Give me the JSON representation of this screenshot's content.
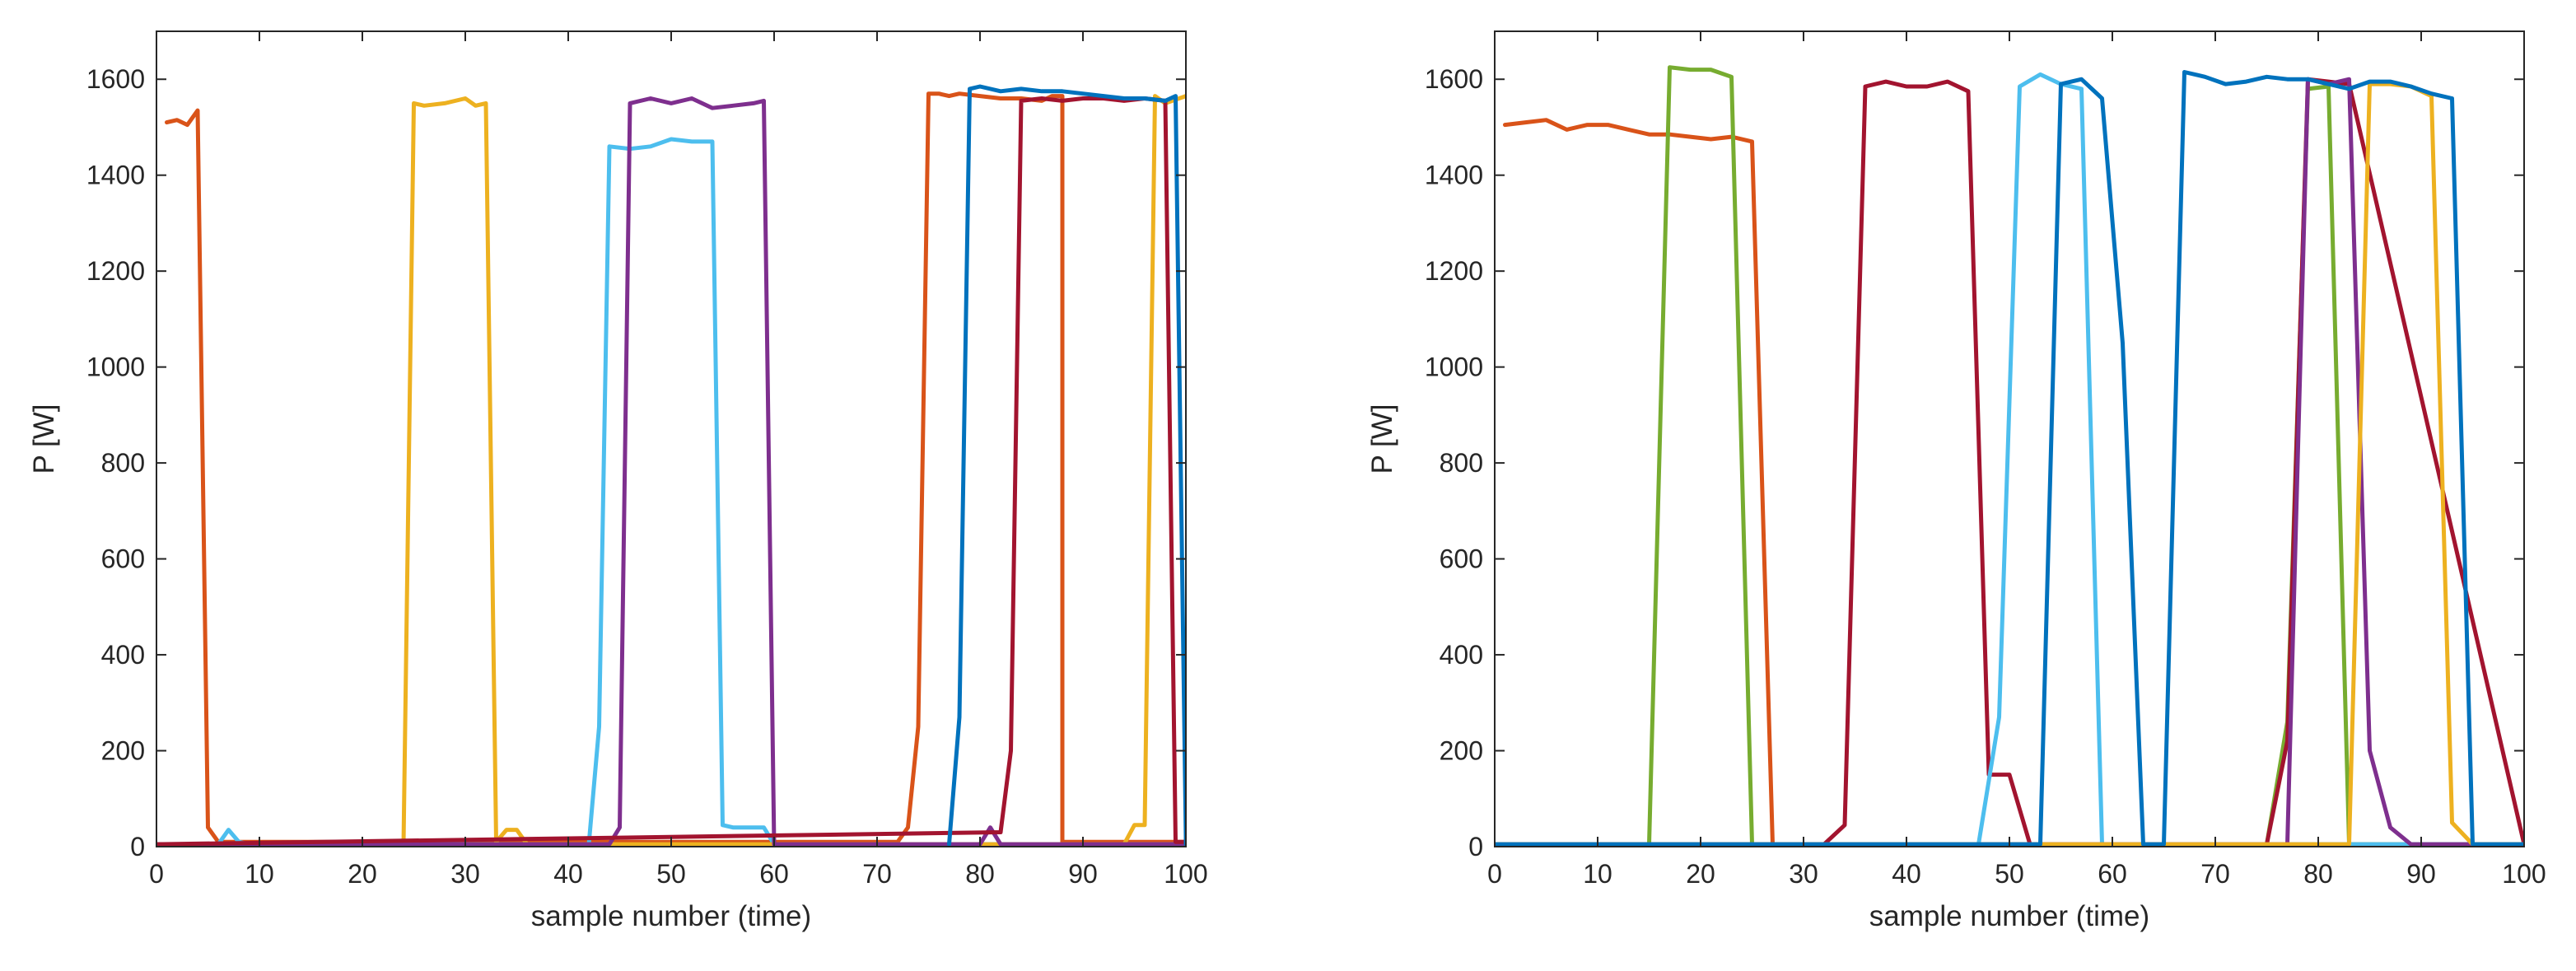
{
  "chart_data": [
    {
      "type": "line",
      "title": "",
      "xlabel": "sample number (time)",
      "ylabel": "P [W]",
      "xlim": [
        0,
        100
      ],
      "ylim": [
        0,
        1700
      ],
      "xticks": [
        0,
        10,
        20,
        30,
        40,
        50,
        60,
        70,
        80,
        90,
        100
      ],
      "yticks": [
        0,
        200,
        400,
        600,
        800,
        1000,
        1200,
        1400,
        1600
      ],
      "grid": false,
      "series": [
        {
          "name": "baseline-blue",
          "color": "#0072BD",
          "x": [
            0,
            100
          ],
          "y": [
            5,
            5
          ]
        },
        {
          "name": "baseline-maroon",
          "color": "#A2142F",
          "x": [
            0,
            100
          ],
          "y": [
            5,
            5
          ]
        },
        {
          "name": "orange",
          "color": "#D95319",
          "x": [
            1,
            2,
            3,
            4,
            5,
            6,
            6,
            72,
            73,
            74,
            75,
            76,
            77,
            78,
            80,
            82,
            84,
            86,
            87,
            88,
            88,
            100
          ],
          "y": [
            1510,
            1515,
            1505,
            1535,
            40,
            10,
            10,
            10,
            40,
            250,
            1570,
            1570,
            1565,
            1570,
            1565,
            1560,
            1560,
            1555,
            1565,
            1565,
            10,
            10
          ]
        },
        {
          "name": "light-blue",
          "color": "#4DBEEE",
          "x": [
            0,
            6,
            7,
            8,
            9,
            42,
            43,
            44,
            46,
            48,
            50,
            52,
            54,
            55,
            56,
            58,
            59,
            60,
            100
          ],
          "y": [
            5,
            5,
            35,
            10,
            5,
            5,
            250,
            1460,
            1455,
            1460,
            1475,
            1470,
            1470,
            45,
            40,
            40,
            40,
            5,
            5
          ]
        },
        {
          "name": "yellow",
          "color": "#EDB120",
          "x": [
            0,
            24,
            25,
            26,
            28,
            30,
            31,
            32,
            33,
            34,
            35,
            36,
            94,
            95,
            96,
            97,
            98,
            100
          ],
          "y": [
            5,
            5,
            1550,
            1545,
            1550,
            1560,
            1545,
            1550,
            10,
            35,
            35,
            5,
            5,
            45,
            45,
            1565,
            1550,
            1565
          ]
        },
        {
          "name": "purple",
          "color": "#7E2F8E",
          "x": [
            0,
            44,
            45,
            46,
            48,
            50,
            52,
            54,
            56,
            58,
            59,
            60,
            80,
            81,
            82,
            100
          ],
          "y": [
            5,
            5,
            40,
            1550,
            1560,
            1550,
            1560,
            1540,
            1545,
            1550,
            1555,
            5,
            5,
            40,
            5,
            5
          ]
        },
        {
          "name": "maroon",
          "color": "#A2142F",
          "x": [
            0,
            82,
            83,
            84,
            86,
            88,
            90,
            92,
            94,
            96,
            98,
            99,
            100
          ],
          "y": [
            5,
            30,
            200,
            1555,
            1560,
            1555,
            1560,
            1560,
            1555,
            1560,
            1555,
            10,
            10
          ]
        },
        {
          "name": "blue",
          "color": "#0072BD",
          "x": [
            77,
            78,
            79,
            80,
            82,
            84,
            86,
            88,
            90,
            92,
            94,
            96,
            98,
            99,
            100,
            100
          ],
          "y": [
            5,
            270,
            1580,
            1585,
            1575,
            1580,
            1575,
            1575,
            1570,
            1565,
            1560,
            1560,
            1555,
            1565,
            20,
            5
          ]
        }
      ]
    },
    {
      "type": "line",
      "title": "",
      "xlabel": "sample number (time)",
      "ylabel": "P [W]",
      "xlim": [
        0,
        100
      ],
      "ylim": [
        0,
        1700
      ],
      "xticks": [
        0,
        10,
        20,
        30,
        40,
        50,
        60,
        70,
        80,
        90,
        100
      ],
      "yticks": [
        0,
        200,
        400,
        600,
        800,
        1000,
        1200,
        1400,
        1600
      ],
      "grid": false,
      "series": [
        {
          "name": "orange",
          "color": "#D95319",
          "x": [
            1,
            3,
            5,
            7,
            9,
            11,
            13,
            15,
            17,
            19,
            21,
            23,
            25,
            27,
            28,
            100
          ],
          "y": [
            1505,
            1510,
            1515,
            1495,
            1505,
            1505,
            1495,
            1485,
            1485,
            1480,
            1475,
            1480,
            1470,
            5,
            5,
            5
          ]
        },
        {
          "name": "green",
          "color": "#77AC30",
          "x": [
            0,
            15,
            17,
            19,
            21,
            23,
            25,
            75,
            77,
            79,
            81,
            83,
            100
          ],
          "y": [
            5,
            5,
            1625,
            1620,
            1620,
            1605,
            5,
            5,
            260,
            1580,
            1585,
            5,
            5
          ]
        },
        {
          "name": "maroon",
          "color": "#A2142F",
          "x": [
            0,
            32,
            34,
            36,
            38,
            40,
            42,
            44,
            46,
            48,
            50,
            52,
            54,
            75,
            77,
            79,
            81,
            83,
            100
          ],
          "y": [
            5,
            5,
            45,
            1585,
            1595,
            1585,
            1585,
            1595,
            1575,
            150,
            150,
            5,
            5,
            5,
            220,
            1600,
            1595,
            1590,
            5
          ]
        },
        {
          "name": "light-blue",
          "color": "#4DBEEE",
          "x": [
            0,
            47,
            49,
            51,
            53,
            55,
            57,
            59,
            100
          ],
          "y": [
            5,
            5,
            270,
            1585,
            1610,
            1590,
            1580,
            5,
            5
          ]
        },
        {
          "name": "purple",
          "color": "#7E2F8E",
          "x": [
            0,
            77,
            79,
            81,
            83,
            85,
            87,
            89,
            100
          ],
          "y": [
            5,
            5,
            1600,
            1590,
            1600,
            200,
            40,
            5,
            5
          ]
        },
        {
          "name": "yellow",
          "color": "#EDB120",
          "x": [
            0,
            83,
            85,
            87,
            89,
            91,
            93,
            95,
            100
          ],
          "y": [
            5,
            5,
            1590,
            1590,
            1585,
            1565,
            50,
            5,
            5
          ]
        },
        {
          "name": "blue",
          "color": "#0072BD",
          "x": [
            0,
            53,
            55,
            57,
            59,
            61,
            63,
            65,
            67,
            69,
            71,
            73,
            75,
            77,
            79,
            81,
            83,
            85,
            87,
            89,
            91,
            93,
            95,
            100
          ],
          "y": [
            5,
            5,
            1590,
            1600,
            1560,
            1050,
            5,
            5,
            1615,
            1605,
            1590,
            1595,
            1605,
            1600,
            1600,
            1590,
            1580,
            1595,
            1595,
            1585,
            1570,
            1560,
            5,
            5
          ]
        }
      ]
    }
  ]
}
